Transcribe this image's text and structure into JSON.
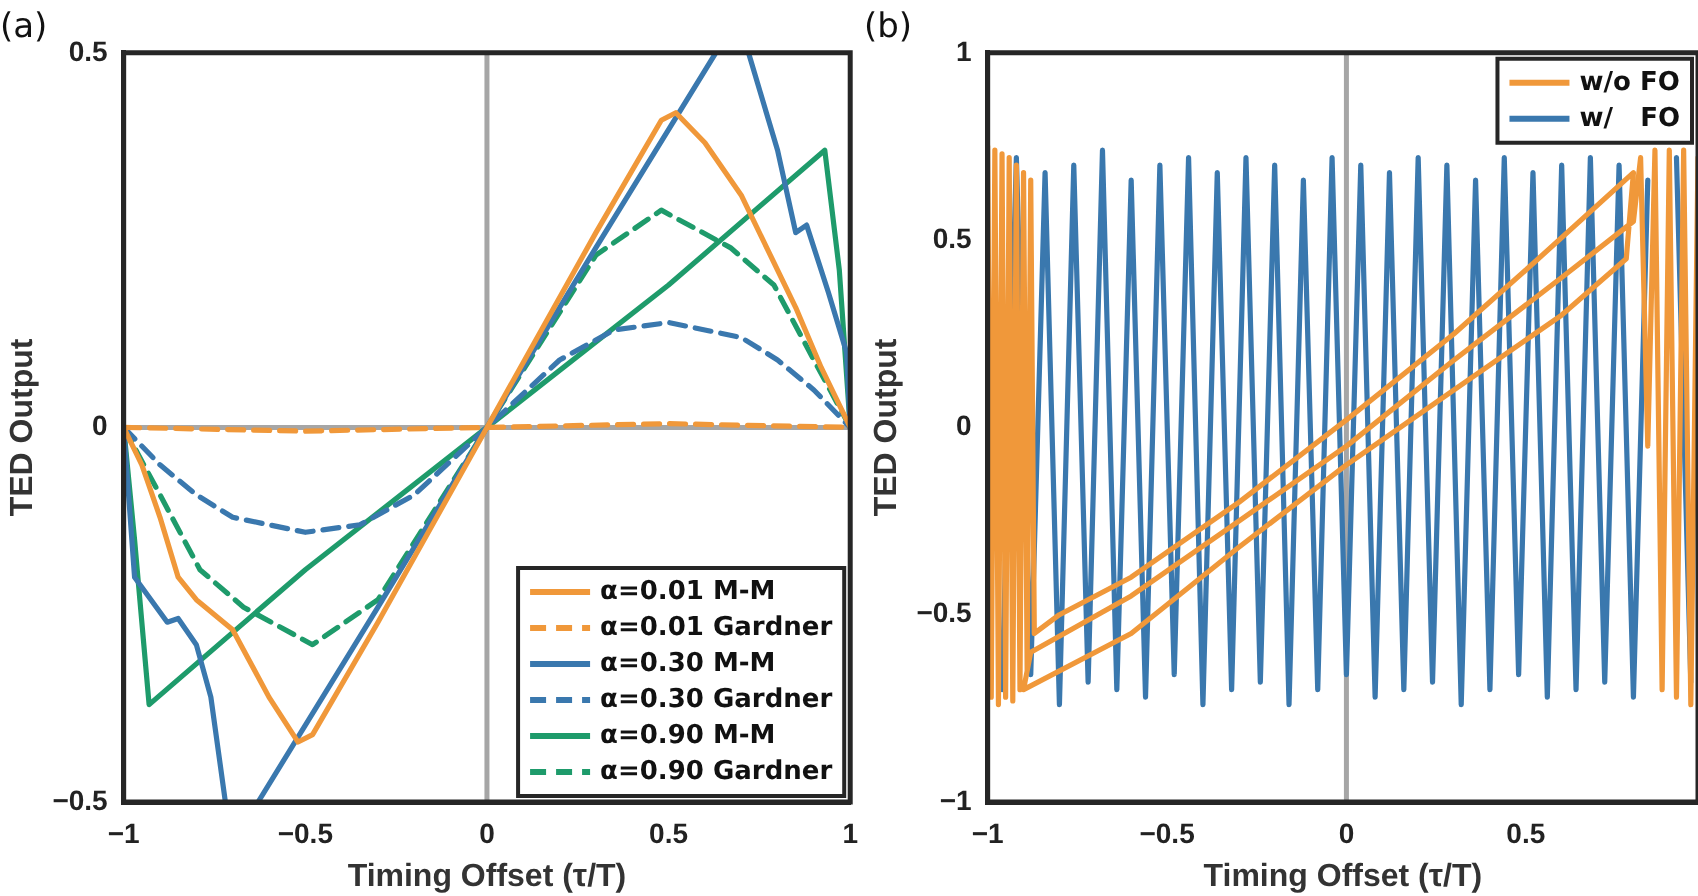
{
  "chart_data": [
    {
      "type": "line",
      "title": "(a)",
      "xlabel": "Timing Offset (τ/T)",
      "ylabel": "TED Output",
      "xlim": [
        -1,
        1
      ],
      "xticks": [
        -1,
        -0.5,
        0,
        0.5,
        1
      ],
      "ylim": [
        -0.5,
        0.5
      ],
      "yticks": [
        -0.5,
        0,
        0.5
      ],
      "grid": false,
      "legend": "bottom right",
      "marker": "none",
      "ref_lines": [
        {
          "axis": "x",
          "value": 0,
          "color": "#a6a6a6"
        },
        {
          "axis": "y",
          "value": 0,
          "color": "#a6a6a6"
        }
      ],
      "series": [
        {
          "name": "α=0.01 M-M",
          "color": "#f0983a",
          "line_style": "solid",
          "x": [
            -1,
            -0.95,
            -0.9,
            -0.85,
            -0.8,
            -0.7,
            -0.6,
            -0.52,
            -0.48,
            -0.3,
            0,
            0.3,
            0.48,
            0.52,
            0.6,
            0.7,
            0.78,
            0.85,
            0.92,
            1
          ],
          "values": [
            0,
            -0.05,
            -0.12,
            -0.2,
            -0.23,
            -0.27,
            -0.36,
            -0.42,
            -0.41,
            -0.26,
            0,
            0.26,
            0.41,
            0.42,
            0.38,
            0.31,
            0.23,
            0.16,
            0.08,
            0
          ]
        },
        {
          "name": "α=0.01 Gardner",
          "color": "#f0983a",
          "line_style": "dashed",
          "x": [
            -1,
            -0.5,
            0,
            0.5,
            1
          ],
          "values": [
            0,
            -0.005,
            0,
            0.005,
            0
          ]
        },
        {
          "name": "α=0.30 M-M",
          "color": "#3a78ae",
          "line_style": "solid",
          "x": [
            -1,
            -0.97,
            -0.91,
            -0.88,
            -0.85,
            -0.8,
            -0.76,
            -0.72,
            -0.68,
            -0.63,
            -0.3,
            0,
            0.3,
            0.63,
            0.68,
            0.72,
            0.8,
            0.85,
            0.88,
            0.94,
            0.99,
            1
          ],
          "values": [
            0,
            -0.2,
            -0.24,
            -0.26,
            -0.255,
            -0.29,
            -0.36,
            -0.5,
            null,
            -0.5,
            -0.24,
            0,
            0.24,
            0.5,
            null,
            0.5,
            0.37,
            0.26,
            0.27,
            0.18,
            0.1,
            0
          ]
        },
        {
          "name": "α=0.30 Gardner",
          "color": "#3a78ae",
          "line_style": "dashed",
          "x": [
            -1,
            -0.9,
            -0.8,
            -0.7,
            -0.5,
            -0.35,
            -0.2,
            0,
            0.2,
            0.35,
            0.5,
            0.7,
            0.8,
            0.9,
            1
          ],
          "values": [
            0,
            -0.05,
            -0.09,
            -0.12,
            -0.14,
            -0.13,
            -0.09,
            0,
            0.09,
            0.13,
            0.14,
            0.12,
            0.09,
            0.05,
            0
          ]
        },
        {
          "name": "α=0.90 M-M",
          "color": "#1e9b6b",
          "line_style": "solid",
          "x": [
            -1,
            -0.97,
            -0.93,
            -0.5,
            0,
            0.5,
            0.93,
            0.97,
            1
          ],
          "values": [
            0,
            -0.15,
            -0.37,
            -0.19,
            0,
            0.19,
            0.37,
            0.21,
            0
          ]
        },
        {
          "name": "α=0.90 Gardner",
          "color": "#1e9b6b",
          "line_style": "dashed",
          "x": [
            -1,
            -0.9,
            -0.79,
            -0.67,
            -0.48,
            -0.3,
            0,
            0.3,
            0.48,
            0.67,
            0.79,
            0.9,
            1
          ],
          "values": [
            0,
            -0.09,
            -0.19,
            -0.24,
            -0.29,
            -0.23,
            0,
            0.23,
            0.29,
            0.24,
            0.19,
            0.09,
            0
          ]
        }
      ]
    },
    {
      "type": "line",
      "title": "(b)",
      "xlabel": "Timing Offset (τ/T)",
      "ylabel": "TED Output",
      "xlim": [
        -1,
        0.98
      ],
      "xticks": [
        -1,
        -0.5,
        0,
        0.5
      ],
      "ylim": [
        -1,
        1
      ],
      "yticks": [
        -1,
        -0.5,
        0,
        0.5,
        1
      ],
      "grid": false,
      "legend": "top right",
      "marker": "none",
      "ref_lines": [
        {
          "axis": "x",
          "value": 0,
          "color": "#a6a6a6"
        }
      ],
      "series": [
        {
          "name": "w/o FO",
          "color": "#f0983a",
          "line_style": "solid",
          "x": [
            -1,
            -0.99,
            -0.98,
            -0.97,
            -0.96,
            -0.95,
            -0.94,
            -0.93,
            -0.92,
            -0.91,
            -0.9,
            -0.89,
            -0.88,
            -0.87,
            -0.8,
            -0.6,
            -0.3,
            0,
            0.3,
            0.5,
            0.8,
            0.78,
            0.6,
            0.3,
            0,
            -0.3,
            -0.6,
            -0.9,
            -0.88,
            -0.6,
            -0.3,
            0,
            0.3,
            0.6,
            0.8,
            0.82,
            0.84,
            0.86,
            0.88,
            0.9,
            0.92,
            0.94,
            0.96,
            0.98
          ],
          "values": [
            0.75,
            -0.72,
            0.74,
            -0.74,
            0.73,
            -0.72,
            0.72,
            -0.73,
            0.7,
            -0.7,
            0.68,
            -0.65,
            0.66,
            -0.55,
            -0.5,
            -0.4,
            -0.2,
            0.02,
            0.25,
            0.42,
            0.68,
            0.45,
            0.3,
            0.1,
            -0.1,
            -0.32,
            -0.55,
            -0.7,
            -0.6,
            -0.45,
            -0.25,
            -0.05,
            0.18,
            0.4,
            0.55,
            0.72,
            -0.05,
            0.74,
            -0.7,
            0.74,
            -0.72,
            0.74,
            -0.74,
            0.72
          ]
        },
        {
          "name": "w/   FO",
          "color": "#3a78ae",
          "line_style": "solid",
          "x": [
            -0.96,
            -0.92,
            -0.88,
            -0.84,
            -0.8,
            -0.76,
            -0.72,
            -0.68,
            -0.64,
            -0.6,
            -0.56,
            -0.52,
            -0.48,
            -0.44,
            -0.4,
            -0.36,
            -0.32,
            -0.28,
            -0.24,
            -0.2,
            -0.16,
            -0.12,
            -0.08,
            -0.04,
            0,
            0.04,
            0.08,
            0.12,
            0.16,
            0.2,
            0.24,
            0.28,
            0.32,
            0.36,
            0.4,
            0.44,
            0.48,
            0.52,
            0.56,
            0.6,
            0.64,
            0.68,
            0.72,
            0.76,
            0.8,
            0.84,
            0.88,
            0.92,
            0.96
          ],
          "values": [
            -0.7,
            0.72,
            -0.66,
            0.68,
            -0.74,
            0.7,
            -0.68,
            0.74,
            -0.7,
            0.66,
            -0.72,
            0.7,
            -0.66,
            0.72,
            -0.74,
            0.68,
            -0.7,
            0.72,
            -0.68,
            0.7,
            -0.74,
            0.66,
            -0.7,
            0.72,
            -0.66,
            0.7,
            -0.72,
            0.68,
            -0.7,
            0.72,
            -0.68,
            0.7,
            -0.74,
            0.66,
            -0.7,
            0.72,
            -0.66,
            0.68,
            -0.72,
            0.7,
            -0.7,
            0.72,
            -0.68,
            0.7,
            -0.72,
            0.66,
            null,
            0.72,
            -0.68
          ]
        }
      ]
    }
  ]
}
